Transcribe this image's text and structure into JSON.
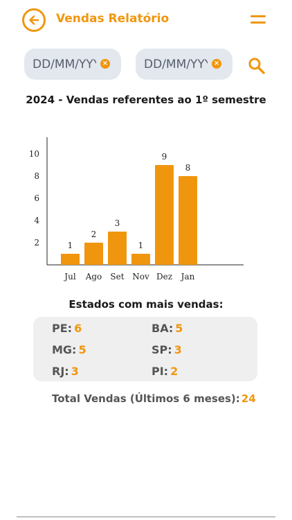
{
  "header": {
    "title": "Vendas Relatório",
    "back_icon": "arrow-left-icon",
    "menu_icon": "hamburger-menu-icon"
  },
  "filters": {
    "start_date": {
      "placeholder": "DD/MM/YYYY",
      "value": ""
    },
    "end_date": {
      "placeholder": "DD/MM/YYYY",
      "value": ""
    },
    "search_icon": "search-icon"
  },
  "chart_title": "2024 - Vendas referentes ao 1º semestre",
  "chart_data": {
    "type": "bar",
    "categories": [
      "Jul",
      "Ago",
      "Set",
      "Nov",
      "Dez",
      "Jan"
    ],
    "values": [
      1,
      2,
      3,
      1,
      9,
      8
    ],
    "data_labels": [
      "1",
      "2",
      "3",
      "1",
      "9",
      "8"
    ],
    "y_ticks": [
      "2",
      "4",
      "6",
      "8",
      "10"
    ],
    "ylim": [
      0,
      11.5
    ],
    "bar_color": "#F0960E",
    "grid": false
  },
  "states": {
    "title": "Estados com mais vendas:",
    "items": [
      {
        "label": "PE:",
        "value": "6"
      },
      {
        "label": "BA:",
        "value": "5"
      },
      {
        "label": "MG:",
        "value": "5"
      },
      {
        "label": "SP:",
        "value": "3"
      },
      {
        "label": "RJ:",
        "value": "3"
      },
      {
        "label": "PI:",
        "value": "2"
      }
    ]
  },
  "total": {
    "label": "Total Vendas (Últimos 6 meses):",
    "value": "24"
  },
  "colors": {
    "accent": "#F0960E",
    "field_bg": "#E3E8EE",
    "card_bg": "#EFEFEF"
  }
}
